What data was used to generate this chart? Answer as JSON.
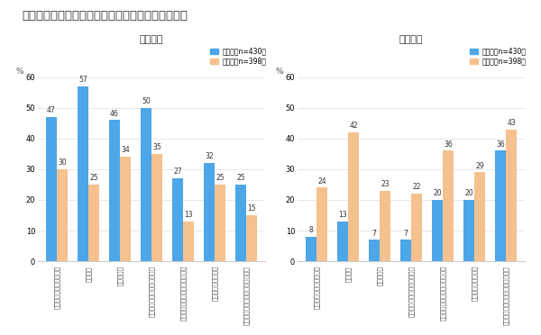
{
  "title": "夫婦のどちらが中心になって行動したか（男女別）",
  "left_subtitle": "夫が中心",
  "right_subtitle": "妻が中心",
  "legend_male": "男性",
  "legend_female": "女性",
  "legend_male_n": "（n=430）",
  "legend_female_n": "（n=398）",
  "categories": [
    "全体のコンセプトの決定",
    "情報収集",
    "依頼先選定",
    "建物躯体の性能・仕様の決定",
    "間取り・室内レイアウトの決定",
    "外観デザインの決定",
    "室内設備・その他設備機器の選定"
  ],
  "left_male": [
    47,
    57,
    46,
    50,
    27,
    32,
    25
  ],
  "left_female": [
    30,
    25,
    34,
    35,
    13,
    25,
    15
  ],
  "right_male": [
    8,
    13,
    7,
    7,
    20,
    20,
    36
  ],
  "right_female": [
    24,
    42,
    23,
    22,
    36,
    29,
    43
  ],
  "ylim": [
    0,
    60
  ],
  "yticks": [
    0,
    10,
    20,
    30,
    40,
    50,
    60
  ],
  "color_male": "#4da6e8",
  "color_female": "#f5c18e",
  "bar_width": 0.35,
  "background_color": "#ffffff",
  "ylabel": "%"
}
